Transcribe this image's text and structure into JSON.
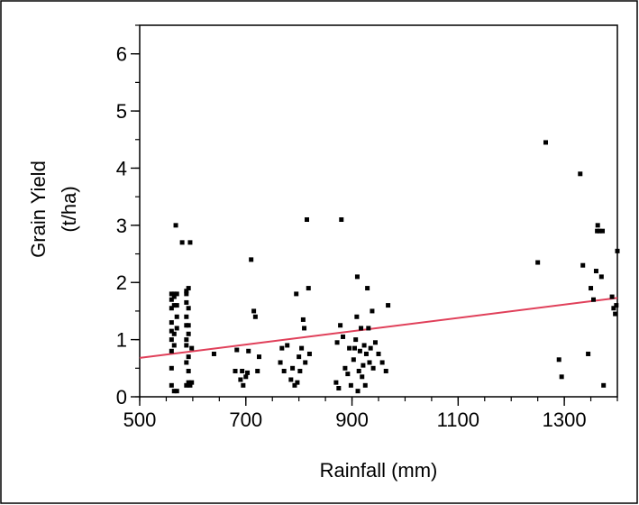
{
  "chart_data": {
    "type": "scatter",
    "title": "",
    "xlabel": "Rainfall (mm)",
    "ylabel_line1": "Grain Yield",
    "ylabel_line2": "(t/ha)",
    "xlim": [
      500,
      1400
    ],
    "ylim": [
      0,
      6.5
    ],
    "x_ticks": [
      500,
      700,
      900,
      1100,
      1300
    ],
    "y_ticks": [
      0,
      1,
      2,
      3,
      4,
      5,
      6
    ],
    "x_minor_step": 50,
    "y_minor_step": 0.5,
    "grid": false,
    "legend": "none",
    "colors": {
      "points": "#000000",
      "fit_line": "#e0405a",
      "frame": "#000000"
    },
    "series": [
      {
        "values_xy": [
          [
            560,
            0.2
          ],
          [
            560,
            0.5
          ],
          [
            560,
            0.8
          ],
          [
            560,
            1.0
          ],
          [
            560,
            1.15
          ],
          [
            560,
            1.3
          ],
          [
            560,
            1.55
          ],
          [
            560,
            1.7
          ],
          [
            560,
            1.8
          ],
          [
            565,
            0.1
          ],
          [
            565,
            0.9
          ],
          [
            565,
            1.1
          ],
          [
            565,
            1.6
          ],
          [
            565,
            1.75
          ],
          [
            565,
            1.8
          ],
          [
            568,
            3.0
          ],
          [
            570,
            0.1
          ],
          [
            570,
            1.2
          ],
          [
            570,
            1.4
          ],
          [
            570,
            1.6
          ],
          [
            570,
            1.8
          ],
          [
            580,
            2.7
          ],
          [
            588,
            0.2
          ],
          [
            588,
            0.6
          ],
          [
            588,
            0.9
          ],
          [
            588,
            1.0
          ],
          [
            588,
            1.25
          ],
          [
            588,
            1.4
          ],
          [
            588,
            1.65
          ],
          [
            588,
            1.8
          ],
          [
            588,
            1.85
          ],
          [
            592,
            0.25
          ],
          [
            592,
            0.45
          ],
          [
            592,
            0.7
          ],
          [
            592,
            1.1
          ],
          [
            592,
            1.25
          ],
          [
            592,
            1.55
          ],
          [
            592,
            1.9
          ],
          [
            595,
            0.2
          ],
          [
            595,
            2.7
          ],
          [
            598,
            0.25
          ],
          [
            598,
            0.85
          ],
          [
            640,
            0.75
          ],
          [
            680,
            0.45
          ],
          [
            683,
            0.82
          ],
          [
            690,
            0.3
          ],
          [
            693,
            0.45
          ],
          [
            695,
            0.2
          ],
          [
            700,
            0.35
          ],
          [
            703,
            0.42
          ],
          [
            705,
            0.8
          ],
          [
            710,
            2.4
          ],
          [
            715,
            1.5
          ],
          [
            718,
            1.4
          ],
          [
            722,
            0.45
          ],
          [
            725,
            0.7
          ],
          [
            765,
            0.6
          ],
          [
            768,
            0.85
          ],
          [
            772,
            0.45
          ],
          [
            778,
            0.9
          ],
          [
            785,
            0.3
          ],
          [
            788,
            0.5
          ],
          [
            792,
            0.2
          ],
          [
            795,
            1.8
          ],
          [
            797,
            0.25
          ],
          [
            800,
            0.7
          ],
          [
            802,
            0.45
          ],
          [
            805,
            0.85
          ],
          [
            808,
            1.35
          ],
          [
            810,
            1.2
          ],
          [
            812,
            0.6
          ],
          [
            815,
            3.1
          ],
          [
            818,
            1.9
          ],
          [
            820,
            0.75
          ],
          [
            870,
            0.25
          ],
          [
            872,
            0.95
          ],
          [
            875,
            0.15
          ],
          [
            878,
            1.25
          ],
          [
            880,
            3.1
          ],
          [
            883,
            1.05
          ],
          [
            887,
            0.5
          ],
          [
            892,
            0.4
          ],
          [
            895,
            0.85
          ],
          [
            898,
            0.2
          ],
          [
            903,
            0.65
          ],
          [
            905,
            0.85
          ],
          [
            907,
            1.0
          ],
          [
            909,
            1.4
          ],
          [
            910,
            2.1
          ],
          [
            911,
            0.1
          ],
          [
            913,
            0.45
          ],
          [
            915,
            0.8
          ],
          [
            917,
            1.2
          ],
          [
            919,
            0.35
          ],
          [
            921,
            0.55
          ],
          [
            923,
            0.9
          ],
          [
            925,
            0.2
          ],
          [
            927,
            0.75
          ],
          [
            929,
            1.9
          ],
          [
            931,
            1.2
          ],
          [
            933,
            0.6
          ],
          [
            935,
            0.85
          ],
          [
            938,
            1.5
          ],
          [
            940,
            0.5
          ],
          [
            944,
            0.95
          ],
          [
            950,
            0.75
          ],
          [
            957,
            0.6
          ],
          [
            964,
            0.45
          ],
          [
            968,
            1.6
          ],
          [
            1250,
            2.35
          ],
          [
            1265,
            4.45
          ],
          [
            1290,
            0.65
          ],
          [
            1295,
            0.35
          ],
          [
            1330,
            3.9
          ],
          [
            1335,
            2.3
          ],
          [
            1345,
            0.75
          ],
          [
            1350,
            1.9
          ],
          [
            1355,
            1.7
          ],
          [
            1360,
            2.2
          ],
          [
            1362,
            2.9
          ],
          [
            1363,
            3.0
          ],
          [
            1366,
            2.9
          ],
          [
            1370,
            2.1
          ],
          [
            1372,
            2.9
          ],
          [
            1374,
            0.2
          ],
          [
            1390,
            1.75
          ],
          [
            1393,
            1.55
          ],
          [
            1396,
            1.45
          ],
          [
            1398,
            1.6
          ],
          [
            1400,
            2.55
          ]
        ]
      }
    ],
    "fit_line": {
      "x": [
        500,
        1400
      ],
      "y": [
        0.68,
        1.73
      ]
    }
  }
}
